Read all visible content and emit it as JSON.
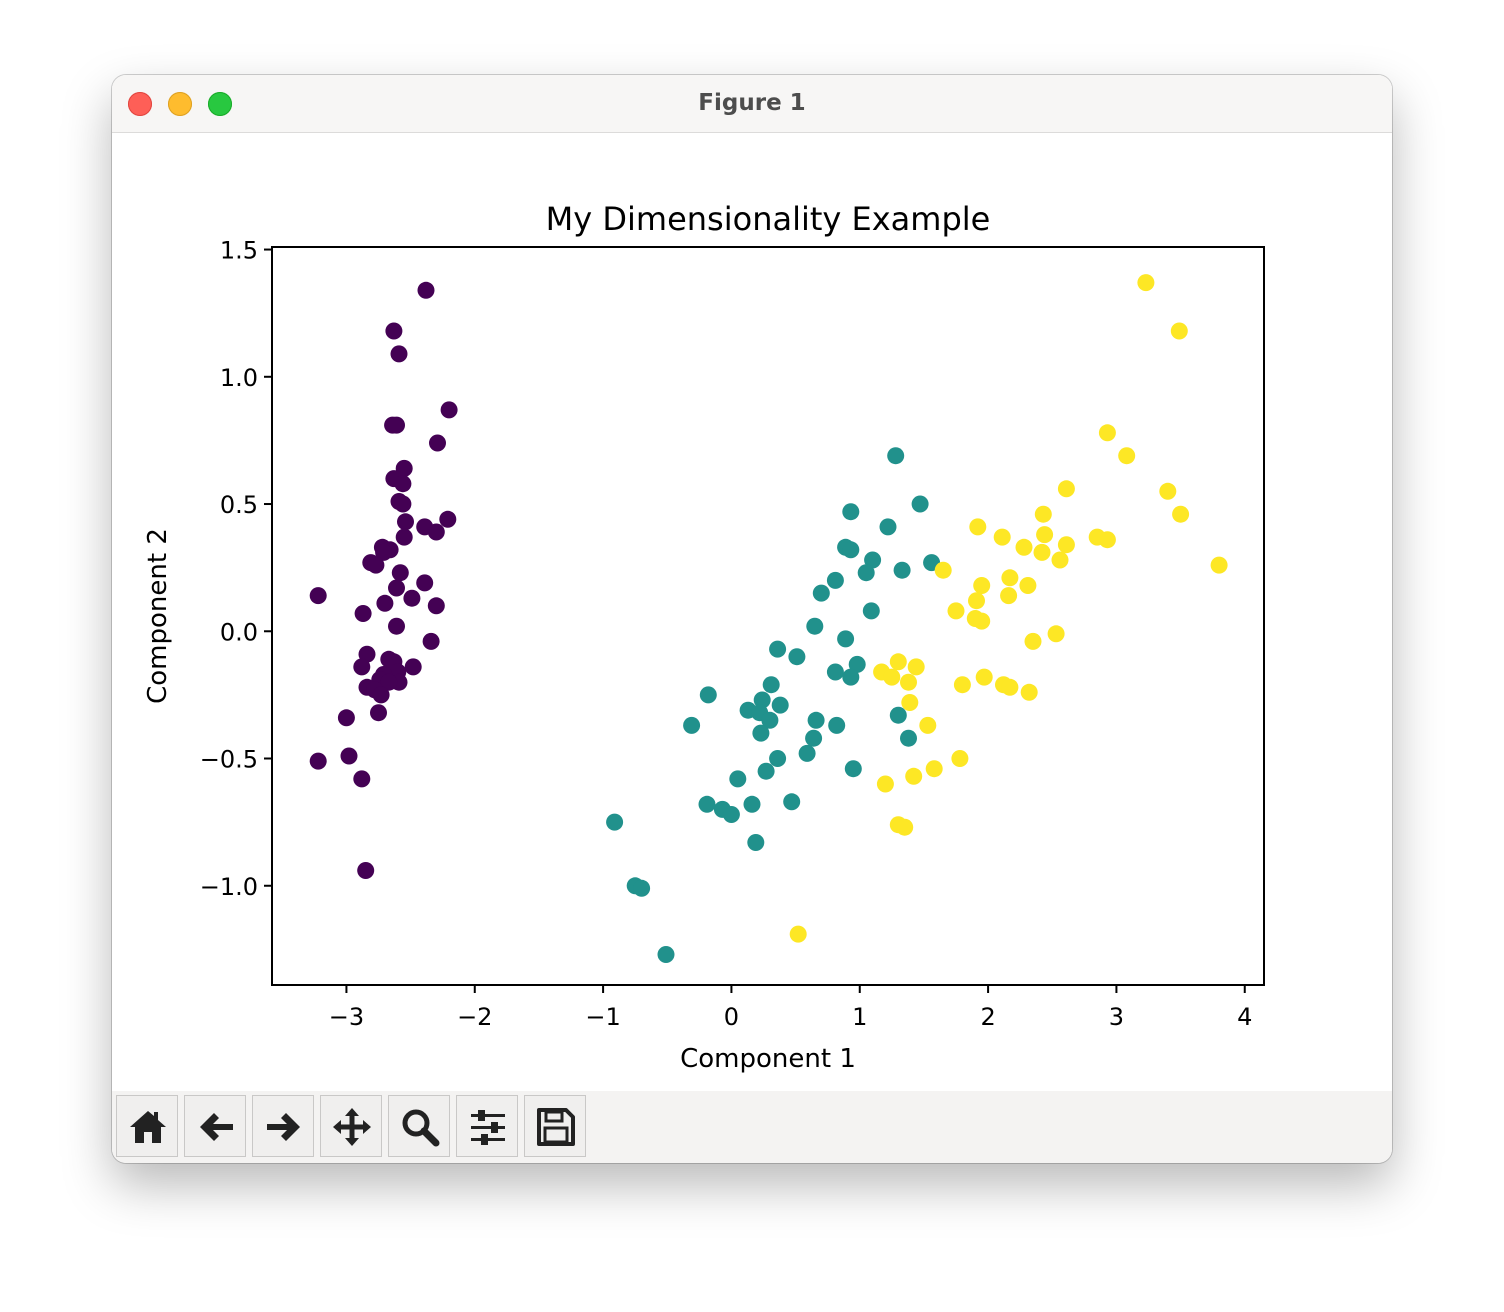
{
  "window": {
    "title": "Figure 1"
  },
  "toolbar": {
    "buttons": [
      {
        "name": "home-button",
        "icon": "home-icon"
      },
      {
        "name": "back-button",
        "icon": "arrow-left-icon"
      },
      {
        "name": "forward-button",
        "icon": "arrow-right-icon"
      },
      {
        "name": "pan-button",
        "icon": "move-icon"
      },
      {
        "name": "zoom-button",
        "icon": "magnifier-icon"
      },
      {
        "name": "configure-subplots-button",
        "icon": "sliders-icon"
      },
      {
        "name": "save-button",
        "icon": "floppy-disk-icon"
      }
    ]
  },
  "colors": {
    "class_0": "#440154",
    "class_1": "#21918c",
    "class_2": "#fde725"
  },
  "chart_data": {
    "type": "scatter",
    "title": "My Dimensionality Example",
    "xlabel": "Component 1",
    "ylabel": "Component 2",
    "xlim": [
      -3.58,
      4.15
    ],
    "ylim": [
      -1.39,
      1.51
    ],
    "xticks": [
      -3,
      -2,
      -1,
      0,
      1,
      2,
      3,
      4
    ],
    "xtick_labels": [
      "−3",
      "−2",
      "−1",
      "0",
      "1",
      "2",
      "3",
      "4"
    ],
    "yticks": [
      -1.0,
      -0.5,
      0.0,
      0.5,
      1.0,
      1.5
    ],
    "ytick_labels": [
      "−1.0",
      "−0.5",
      "0.0",
      "0.5",
      "1.0",
      "1.5"
    ],
    "grid": false,
    "series": [
      {
        "color": "#440154",
        "points": [
          [
            -2.38,
            1.34
          ],
          [
            -2.63,
            1.18
          ],
          [
            -2.59,
            1.09
          ],
          [
            -2.2,
            0.87
          ],
          [
            -2.64,
            0.81
          ],
          [
            -2.61,
            0.81
          ],
          [
            -2.29,
            0.74
          ],
          [
            -2.55,
            0.64
          ],
          [
            -2.63,
            0.6
          ],
          [
            -2.56,
            0.58
          ],
          [
            -2.59,
            0.51
          ],
          [
            -2.56,
            0.5
          ],
          [
            -2.21,
            0.44
          ],
          [
            -2.54,
            0.43
          ],
          [
            -2.39,
            0.41
          ],
          [
            -2.3,
            0.39
          ],
          [
            -2.55,
            0.37
          ],
          [
            -2.72,
            0.33
          ],
          [
            -2.66,
            0.32
          ],
          [
            -2.71,
            0.31
          ],
          [
            -2.81,
            0.27
          ],
          [
            -2.77,
            0.26
          ],
          [
            -2.58,
            0.23
          ],
          [
            -2.39,
            0.19
          ],
          [
            -2.61,
            0.17
          ],
          [
            -3.22,
            0.14
          ],
          [
            -2.49,
            0.13
          ],
          [
            -2.7,
            0.11
          ],
          [
            -2.3,
            0.1
          ],
          [
            -2.87,
            0.07
          ],
          [
            -2.61,
            0.02
          ],
          [
            -2.34,
            -0.04
          ],
          [
            -2.84,
            -0.09
          ],
          [
            -2.67,
            -0.11
          ],
          [
            -2.63,
            -0.12
          ],
          [
            -2.88,
            -0.14
          ],
          [
            -2.48,
            -0.14
          ],
          [
            -2.6,
            -0.16
          ],
          [
            -2.71,
            -0.17
          ],
          [
            -2.74,
            -0.19
          ],
          [
            -2.59,
            -0.2
          ],
          [
            -2.67,
            -0.2
          ],
          [
            -2.84,
            -0.22
          ],
          [
            -2.78,
            -0.23
          ],
          [
            -2.73,
            -0.25
          ],
          [
            -2.75,
            -0.32
          ],
          [
            -3.0,
            -0.34
          ],
          [
            -2.98,
            -0.49
          ],
          [
            -3.22,
            -0.51
          ],
          [
            -2.88,
            -0.58
          ],
          [
            -2.85,
            -0.94
          ]
        ]
      },
      {
        "color": "#21918c",
        "points": [
          [
            1.28,
            0.69
          ],
          [
            1.47,
            0.5
          ],
          [
            0.93,
            0.47
          ],
          [
            1.22,
            0.41
          ],
          [
            0.89,
            0.33
          ],
          [
            0.93,
            0.32
          ],
          [
            1.1,
            0.28
          ],
          [
            1.56,
            0.27
          ],
          [
            1.33,
            0.24
          ],
          [
            1.05,
            0.23
          ],
          [
            0.81,
            0.2
          ],
          [
            0.7,
            0.15
          ],
          [
            1.09,
            0.08
          ],
          [
            0.65,
            0.02
          ],
          [
            0.89,
            -0.03
          ],
          [
            0.36,
            -0.07
          ],
          [
            0.51,
            -0.1
          ],
          [
            0.98,
            -0.13
          ],
          [
            0.81,
            -0.16
          ],
          [
            0.93,
            -0.18
          ],
          [
            0.31,
            -0.21
          ],
          [
            -0.18,
            -0.25
          ],
          [
            0.24,
            -0.27
          ],
          [
            0.38,
            -0.29
          ],
          [
            0.13,
            -0.31
          ],
          [
            0.22,
            -0.32
          ],
          [
            0.3,
            -0.35
          ],
          [
            1.3,
            -0.33
          ],
          [
            -0.31,
            -0.37
          ],
          [
            0.66,
            -0.35
          ],
          [
            0.82,
            -0.37
          ],
          [
            0.23,
            -0.4
          ],
          [
            1.38,
            -0.42
          ],
          [
            0.64,
            -0.42
          ],
          [
            0.59,
            -0.48
          ],
          [
            0.36,
            -0.5
          ],
          [
            0.27,
            -0.55
          ],
          [
            0.95,
            -0.54
          ],
          [
            0.05,
            -0.58
          ],
          [
            0.47,
            -0.67
          ],
          [
            -0.19,
            -0.68
          ],
          [
            0.16,
            -0.68
          ],
          [
            -0.07,
            -0.7
          ],
          [
            0.0,
            -0.72
          ],
          [
            0.19,
            -0.83
          ],
          [
            -0.91,
            -0.75
          ],
          [
            -0.75,
            -1.0
          ],
          [
            -0.7,
            -1.01
          ],
          [
            -0.51,
            -1.27
          ]
        ]
      },
      {
        "color": "#fde725",
        "points": [
          [
            3.23,
            1.37
          ],
          [
            3.49,
            1.18
          ],
          [
            2.93,
            0.78
          ],
          [
            3.08,
            0.69
          ],
          [
            2.61,
            0.56
          ],
          [
            3.4,
            0.55
          ],
          [
            3.5,
            0.46
          ],
          [
            2.43,
            0.46
          ],
          [
            1.92,
            0.41
          ],
          [
            2.11,
            0.37
          ],
          [
            2.44,
            0.38
          ],
          [
            2.85,
            0.37
          ],
          [
            2.93,
            0.36
          ],
          [
            2.28,
            0.33
          ],
          [
            2.61,
            0.34
          ],
          [
            2.42,
            0.31
          ],
          [
            2.56,
            0.28
          ],
          [
            3.8,
            0.26
          ],
          [
            1.65,
            0.24
          ],
          [
            2.17,
            0.21
          ],
          [
            1.95,
            0.18
          ],
          [
            2.31,
            0.18
          ],
          [
            2.16,
            0.14
          ],
          [
            1.91,
            0.12
          ],
          [
            1.75,
            0.08
          ],
          [
            1.9,
            0.05
          ],
          [
            1.95,
            0.04
          ],
          [
            2.53,
            -0.01
          ],
          [
            2.35,
            -0.04
          ],
          [
            1.3,
            -0.12
          ],
          [
            1.44,
            -0.14
          ],
          [
            1.17,
            -0.16
          ],
          [
            1.25,
            -0.18
          ],
          [
            1.38,
            -0.2
          ],
          [
            1.97,
            -0.18
          ],
          [
            2.12,
            -0.21
          ],
          [
            2.17,
            -0.22
          ],
          [
            1.8,
            -0.21
          ],
          [
            2.32,
            -0.24
          ],
          [
            1.39,
            -0.28
          ],
          [
            1.53,
            -0.37
          ],
          [
            1.78,
            -0.5
          ],
          [
            1.58,
            -0.54
          ],
          [
            1.42,
            -0.57
          ],
          [
            1.2,
            -0.6
          ],
          [
            1.3,
            -0.76
          ],
          [
            1.35,
            -0.77
          ],
          [
            0.52,
            -1.19
          ]
        ]
      }
    ]
  }
}
